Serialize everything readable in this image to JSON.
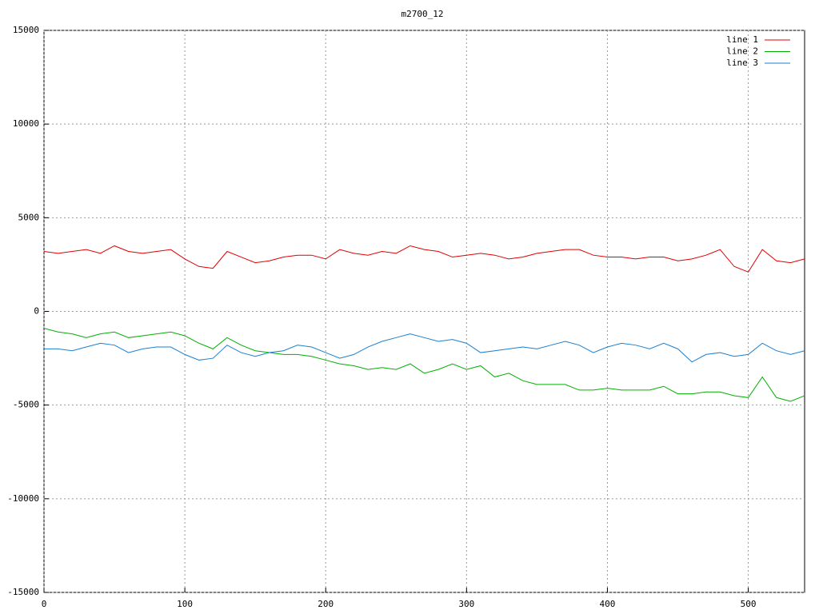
{
  "chart_data": {
    "type": "line",
    "title": "m2700_12",
    "x": [
      0,
      10,
      20,
      30,
      40,
      50,
      60,
      70,
      80,
      90,
      100,
      110,
      120,
      130,
      140,
      150,
      160,
      170,
      180,
      190,
      200,
      210,
      220,
      230,
      240,
      250,
      260,
      270,
      280,
      290,
      300,
      310,
      320,
      330,
      340,
      350,
      360,
      370,
      380,
      390,
      400,
      410,
      420,
      430,
      440,
      450,
      460,
      470,
      480,
      490,
      500,
      510,
      520,
      530,
      540
    ],
    "series": [
      {
        "name": "line 1",
        "color": "#e00000",
        "values": [
          3200,
          3100,
          3200,
          3300,
          3100,
          3500,
          3200,
          3100,
          3200,
          3300,
          2800,
          2400,
          2300,
          3200,
          2900,
          2600,
          2700,
          2900,
          3000,
          3000,
          2800,
          3300,
          3100,
          3000,
          3200,
          3100,
          3500,
          3300,
          3200,
          2900,
          3000,
          3100,
          3000,
          2800,
          2900,
          3100,
          3200,
          3300,
          3300,
          3000,
          2900,
          2900,
          2800,
          2900,
          2900,
          2700,
          2800,
          3000,
          3300,
          2400,
          2100,
          3300,
          2700,
          2600,
          2800
        ]
      },
      {
        "name": "line 2",
        "color": "#00b000",
        "values": [
          -900,
          -1100,
          -1200,
          -1400,
          -1200,
          -1100,
          -1400,
          -1300,
          -1200,
          -1100,
          -1300,
          -1700,
          -2000,
          -1400,
          -1800,
          -2100,
          -2200,
          -2300,
          -2300,
          -2400,
          -2600,
          -2800,
          -2900,
          -3100,
          -3000,
          -3100,
          -2800,
          -3300,
          -3100,
          -2800,
          -3100,
          -2900,
          -3500,
          -3300,
          -3700,
          -3900,
          -3900,
          -3900,
          -4200,
          -4200,
          -4100,
          -4200,
          -4200,
          -4200,
          -4000,
          -4400,
          -4400,
          -4300,
          -4300,
          -4500,
          -4600,
          -3500,
          -4600,
          -4800,
          -4500
        ]
      },
      {
        "name": "line 3",
        "color": "#1a7fd0",
        "values": [
          -2000,
          -2000,
          -2100,
          -1900,
          -1700,
          -1800,
          -2200,
          -2000,
          -1900,
          -1900,
          -2300,
          -2600,
          -2500,
          -1800,
          -2200,
          -2400,
          -2200,
          -2100,
          -1800,
          -1900,
          -2200,
          -2500,
          -2300,
          -1900,
          -1600,
          -1400,
          -1200,
          -1400,
          -1600,
          -1500,
          -1700,
          -2200,
          -2100,
          -2000,
          -1900,
          -2000,
          -1800,
          -1600,
          -1800,
          -2200,
          -1900,
          -1700,
          -1800,
          -2000,
          -1700,
          -2000,
          -2700,
          -2300,
          -2200,
          -2400,
          -2300,
          -1700,
          -2100,
          -2300,
          -2100
        ]
      }
    ],
    "xlim": [
      0,
      540
    ],
    "xticks": [
      0,
      100,
      200,
      300,
      400,
      500
    ],
    "ylim": [
      -15000,
      15000
    ],
    "yticks": [
      -15000,
      -10000,
      -5000,
      0,
      5000,
      10000,
      15000
    ],
    "grid": true,
    "legend": "top-right"
  }
}
